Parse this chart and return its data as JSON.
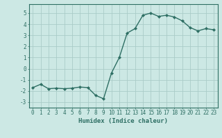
{
  "x": [
    0,
    1,
    2,
    3,
    4,
    5,
    6,
    7,
    8,
    9,
    10,
    11,
    12,
    13,
    14,
    15,
    16,
    17,
    18,
    19,
    20,
    21,
    22,
    23
  ],
  "y": [
    -1.7,
    -1.4,
    -1.8,
    -1.75,
    -1.8,
    -1.75,
    -1.65,
    -1.7,
    -2.4,
    -2.7,
    -0.4,
    1.0,
    3.2,
    3.6,
    4.8,
    5.0,
    4.7,
    4.8,
    4.65,
    4.3,
    3.7,
    3.4,
    3.6,
    3.5
  ],
  "line_color": "#2d6e63",
  "marker": "D",
  "markersize": 2.2,
  "linewidth": 1.0,
  "xlabel": "Humidex (Indice chaleur)",
  "xlim": [
    -0.5,
    23.5
  ],
  "ylim": [
    -3.5,
    5.8
  ],
  "yticks": [
    -3,
    -2,
    -1,
    0,
    1,
    2,
    3,
    4,
    5
  ],
  "xticks": [
    0,
    1,
    2,
    3,
    4,
    5,
    6,
    7,
    8,
    9,
    10,
    11,
    12,
    13,
    14,
    15,
    16,
    17,
    18,
    19,
    20,
    21,
    22,
    23
  ],
  "bg_color": "#cce8e4",
  "grid_color": "#aaccc8",
  "spine_color": "#2d6e63",
  "label_color": "#2d6e63",
  "xlabel_fontsize": 6.5,
  "tick_fontsize": 5.5
}
